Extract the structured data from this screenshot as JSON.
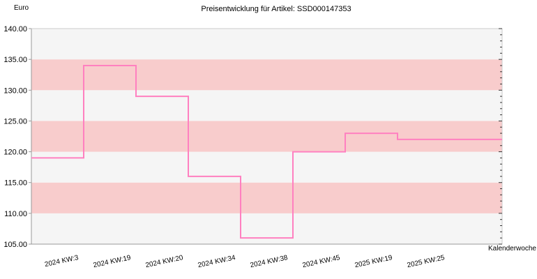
{
  "chart_data": {
    "type": "line",
    "step": true,
    "title": "Preisentwicklung für Artikel: SSD000147353",
    "ylabel": "Euro",
    "xlabel": "Kalenderwoche",
    "ylim": [
      105,
      140
    ],
    "yticks": [
      "105.00",
      "110.00",
      "115.00",
      "120.00",
      "125.00",
      "130.00",
      "135.00",
      "140.00"
    ],
    "categories": [
      "2024 KW:3",
      "2024 KW:19",
      "2024 KW:20",
      "2024 KW:34",
      "2024 KW:38",
      "2024 KW:45",
      "2025 KW:19",
      "2025 KW:25"
    ],
    "series": [
      {
        "values": [
          119,
          134,
          129,
          116,
          106,
          120,
          123,
          122
        ]
      }
    ],
    "colors": {
      "line": "#ff80c0",
      "band_shaded": "#f8cccc",
      "band_light": "#f5f5f5",
      "axis": "#999999"
    },
    "grid": true
  }
}
